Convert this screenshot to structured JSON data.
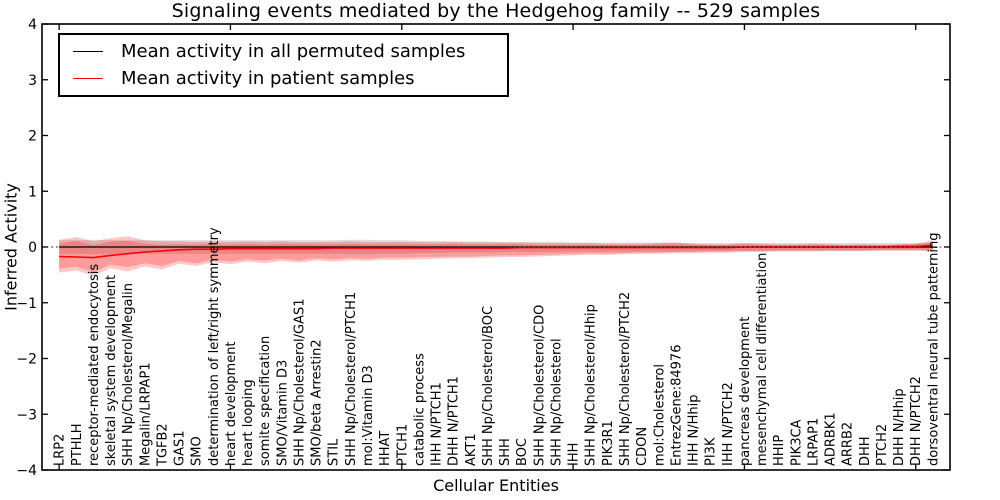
{
  "chart_data": {
    "type": "line",
    "title": "Signaling events mediated by the Hedgehog family -- 529 samples",
    "xlabel": "Cellular Entities",
    "ylabel": "Inferred Activity",
    "xlim": [
      -1,
      52
    ],
    "ylim": [
      -4,
      4
    ],
    "yticks": [
      4,
      3,
      2,
      1,
      0,
      -1,
      -2,
      -3,
      -4
    ],
    "xticks": [
      0,
      10,
      20,
      30,
      40,
      50
    ],
    "grid": false,
    "legend": {
      "position": "upper left",
      "entries": [
        {
          "label": "Mean activity in all permuted samples",
          "color": "#000000"
        },
        {
          "label": "Mean activity in patient samples",
          "color": "#ff0000"
        }
      ]
    },
    "zero_line": {
      "y": 0,
      "style": "dotted",
      "color": "#000000"
    },
    "colors": {
      "frame": "#000000",
      "background": "#ffffff",
      "permuted_band": "#bfbfbf",
      "patient_band": "#ff0000"
    },
    "categories": [
      "LRP2",
      "PTHLH",
      "receptor-mediated endocytosis",
      "skeletal system development",
      "SHH Np/Cholesterol/Megalin",
      "Megalin/LRPAP1",
      "TGFB2",
      "GAS1",
      "SMO",
      "determination of left/right symmetry",
      "heart development",
      "heart looping",
      "somite specification",
      "SMO/Vitamin D3",
      "SHH Np/Cholesterol/GAS1",
      "SMO/beta Arrestin2",
      "STIL",
      "SHH Np/Cholesterol/PTCH1",
      "mol:Vitamin D3",
      "HHAT",
      "PTCH1",
      "catabolic process",
      "IHH N/PTCH1",
      "DHH N/PTCH1",
      "AKT1",
      "SHH Np/Cholesterol/BOC",
      "SHH",
      "BOC",
      "SHH Np/Cholesterol/CDO",
      "SHH Np/Cholesterol",
      "IHH",
      "SHH Np/Cholesterol/Hhip",
      "PIK3R1",
      "SHH Np/Cholesterol/PTCH2",
      "CDON",
      "mol:Cholesterol",
      "EntrezGene:84976",
      "IHH N/Hhip",
      "PI3K",
      "IHH N/PTCH2",
      "pancreas development",
      "mesenchymal cell differentiation",
      "HHIP",
      "PIK3CA",
      "LRPAP1",
      "ADRBK1",
      "ARRB2",
      "DHH",
      "PTCH2",
      "DHH N/Hhip",
      "DHH N/PTCH2",
      "dorsoventral neural tube patterning"
    ],
    "series": [
      {
        "name": "Mean activity in all permuted samples",
        "color": "#000000",
        "width": 1.3,
        "values": [
          0,
          0,
          0,
          0,
          0,
          0,
          0,
          0,
          0,
          0,
          0,
          0,
          0,
          0,
          0,
          0,
          0,
          0,
          0,
          0,
          0,
          0,
          0,
          0,
          0,
          0,
          0,
          0,
          0,
          0,
          0,
          0,
          0,
          0,
          0,
          0,
          0,
          0,
          0,
          0,
          0,
          0,
          0,
          0,
          0,
          0,
          0,
          0,
          0,
          0,
          0,
          0
        ]
      },
      {
        "name": "Mean activity in patient samples",
        "color": "#ff0000",
        "width": 1.6,
        "values": [
          -0.17,
          -0.18,
          -0.19,
          -0.15,
          -0.12,
          -0.09,
          -0.07,
          -0.05,
          -0.04,
          -0.04,
          -0.03,
          -0.03,
          -0.03,
          -0.03,
          -0.03,
          -0.03,
          -0.02,
          -0.02,
          -0.02,
          -0.02,
          -0.02,
          -0.02,
          -0.02,
          -0.02,
          -0.02,
          -0.02,
          -0.02,
          -0.01,
          -0.01,
          -0.01,
          -0.01,
          -0.01,
          -0.01,
          -0.01,
          -0.01,
          -0.01,
          -0.01,
          -0.01,
          -0.01,
          -0.01,
          0,
          0,
          0,
          0,
          0,
          0,
          0,
          0,
          0,
          0.01,
          0.01,
          0.03
        ]
      }
    ],
    "bands": [
      {
        "name": "permuted-range",
        "color": "#bfbfbf",
        "opacity": 0.55,
        "upper": [
          0.12,
          0.12,
          0.13,
          0.12,
          0.12,
          0.12,
          0.12,
          0.12,
          0.12,
          0.12,
          0.12,
          0.12,
          0.12,
          0.12,
          0.12,
          0.12,
          0.12,
          0.13,
          0.13,
          0.12,
          0.12,
          0.11,
          0.11,
          0.1,
          0.1,
          0.1,
          0.09,
          0.09,
          0.09,
          0.09,
          0.08,
          0.08,
          0.08,
          0.08,
          0.08,
          0.08,
          0.08,
          0.07,
          0.07,
          0.07,
          0.07,
          0.07,
          0.07,
          0.07,
          0.07,
          0.07,
          0.07,
          0.07,
          0.07,
          0.07,
          0.07,
          0.07
        ],
        "lower": [
          -0.12,
          -0.12,
          -0.13,
          -0.12,
          -0.12,
          -0.12,
          -0.12,
          -0.12,
          -0.12,
          -0.12,
          -0.12,
          -0.12,
          -0.12,
          -0.12,
          -0.12,
          -0.12,
          -0.12,
          -0.13,
          -0.13,
          -0.12,
          -0.12,
          -0.11,
          -0.11,
          -0.1,
          -0.1,
          -0.1,
          -0.09,
          -0.09,
          -0.09,
          -0.09,
          -0.08,
          -0.08,
          -0.08,
          -0.08,
          -0.08,
          -0.08,
          -0.08,
          -0.07,
          -0.07,
          -0.07,
          -0.07,
          -0.07,
          -0.07,
          -0.07,
          -0.07,
          -0.07,
          -0.07,
          -0.07,
          -0.07,
          -0.07,
          -0.07,
          -0.07
        ]
      },
      {
        "name": "patient-range-outer",
        "color": "#ff0000",
        "opacity": 0.22,
        "upper": [
          0.13,
          0.18,
          0.1,
          0.16,
          0.19,
          0.12,
          0.1,
          0.1,
          0.09,
          0.1,
          0.09,
          0.1,
          0.09,
          0.1,
          0.09,
          0.09,
          0.09,
          0.1,
          0.09,
          0.09,
          0.09,
          0.09,
          0.08,
          0.09,
          0.08,
          0.08,
          0.08,
          0.08,
          0.07,
          0.07,
          0.07,
          0.07,
          0.06,
          0.06,
          0.06,
          0.07,
          0.08,
          0.06,
          0.05,
          0.05,
          0.07,
          0.06,
          0.05,
          0.05,
          0.06,
          0.05,
          0.04,
          0.05,
          0.04,
          0.05,
          0.06,
          0.12
        ],
        "lower": [
          -0.46,
          -0.42,
          -0.52,
          -0.38,
          -0.44,
          -0.35,
          -0.4,
          -0.3,
          -0.34,
          -0.27,
          -0.31,
          -0.26,
          -0.29,
          -0.25,
          -0.28,
          -0.24,
          -0.26,
          -0.24,
          -0.25,
          -0.23,
          -0.23,
          -0.22,
          -0.21,
          -0.2,
          -0.2,
          -0.19,
          -0.18,
          -0.18,
          -0.17,
          -0.16,
          -0.15,
          -0.14,
          -0.14,
          -0.13,
          -0.12,
          -0.12,
          -0.11,
          -0.11,
          -0.1,
          -0.1,
          -0.09,
          -0.09,
          -0.08,
          -0.08,
          -0.08,
          -0.07,
          -0.07,
          -0.07,
          -0.06,
          -0.06,
          -0.06,
          -0.07
        ],
        "line": {
          "name": "Mean activity in patient samples",
          "color": "#ff0000"
        }
      },
      {
        "name": "patient-range-inner",
        "color": "#ff0000",
        "opacity": 0.22,
        "upper": [
          0.06,
          0.11,
          0.03,
          0.1,
          0.11,
          0.06,
          0.04,
          0.05,
          0.04,
          0.06,
          0.04,
          0.06,
          0.04,
          0.06,
          0.05,
          0.05,
          0.05,
          0.06,
          0.05,
          0.05,
          0.05,
          0.05,
          0.05,
          0.06,
          0.05,
          0.05,
          0.05,
          0.05,
          0.04,
          0.04,
          0.04,
          0.04,
          0.04,
          0.04,
          0.04,
          0.05,
          0.06,
          0.04,
          0.03,
          0.03,
          0.05,
          0.04,
          0.03,
          0.03,
          0.04,
          0.04,
          0.03,
          0.04,
          0.03,
          0.04,
          0.05,
          0.09
        ],
        "lower": [
          -0.39,
          -0.35,
          -0.45,
          -0.32,
          -0.36,
          -0.29,
          -0.34,
          -0.25,
          -0.29,
          -0.23,
          -0.26,
          -0.22,
          -0.24,
          -0.21,
          -0.24,
          -0.2,
          -0.22,
          -0.2,
          -0.21,
          -0.19,
          -0.19,
          -0.18,
          -0.18,
          -0.17,
          -0.17,
          -0.16,
          -0.15,
          -0.15,
          -0.14,
          -0.13,
          -0.12,
          -0.11,
          -0.12,
          -0.11,
          -0.1,
          -0.1,
          -0.09,
          -0.09,
          -0.08,
          -0.08,
          -0.07,
          -0.07,
          -0.06,
          -0.06,
          -0.06,
          -0.06,
          -0.06,
          -0.06,
          -0.05,
          -0.05,
          -0.05,
          -0.05
        ]
      }
    ]
  }
}
